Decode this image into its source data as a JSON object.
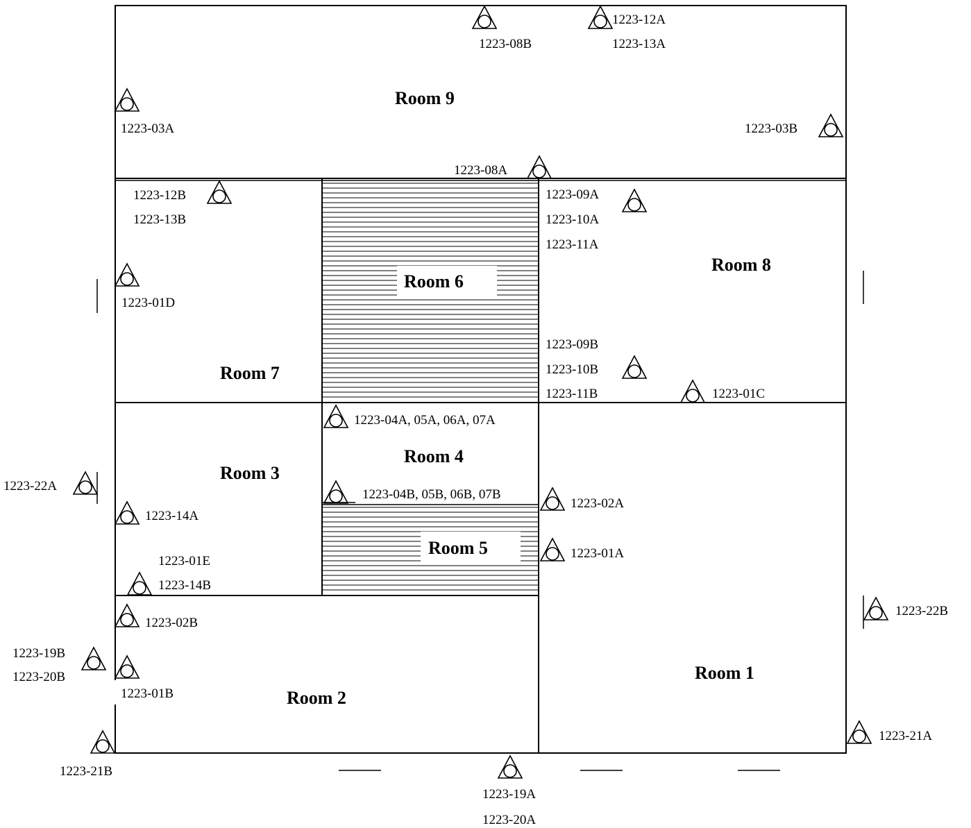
{
  "rooms": {
    "room9": "Room 9",
    "room8": "Room 8",
    "room7": "Room 7",
    "room6": "Room 6",
    "room5": "Room 5",
    "room4": "Room 4",
    "room3": "Room 3",
    "room2": "Room 2",
    "room1": "Room 1"
  },
  "sensors": {
    "s12a": "1223-12A",
    "s13a": "1223-13A",
    "s08b": "1223-08B",
    "s03a": "1223-03A",
    "s03b": "1223-03B",
    "s08a": "1223-08A",
    "s12b": "1223-12B",
    "s13b": "1223-13B",
    "s09a": "1223-09A",
    "s10a": "1223-10A",
    "s11a": "1223-11A",
    "s01d": "1223-01D",
    "s09b": "1223-09B",
    "s10b": "1223-10B",
    "s11b": "1223-11B",
    "s01c": "1223-01C",
    "s04a": "1223-04A, 05A, 06A, 07A",
    "s22a": "1223-22A",
    "s04b": "1223-04B, 05B, 06B, 07B",
    "s02a": "1223-02A",
    "s14a": "1223-14A",
    "s01a": "1223-01A",
    "s01e": "1223-01E",
    "s14b": "1223-14B",
    "s02b": "1223-02B",
    "s22b": "1223-22B",
    "s19b": "1223-19B",
    "s20b": "1223-20B",
    "s01b": "1223-01B",
    "s21a": "1223-21A",
    "s21b": "1223-21B",
    "s19a": "1223-19A",
    "s20a": "1223-20A"
  }
}
